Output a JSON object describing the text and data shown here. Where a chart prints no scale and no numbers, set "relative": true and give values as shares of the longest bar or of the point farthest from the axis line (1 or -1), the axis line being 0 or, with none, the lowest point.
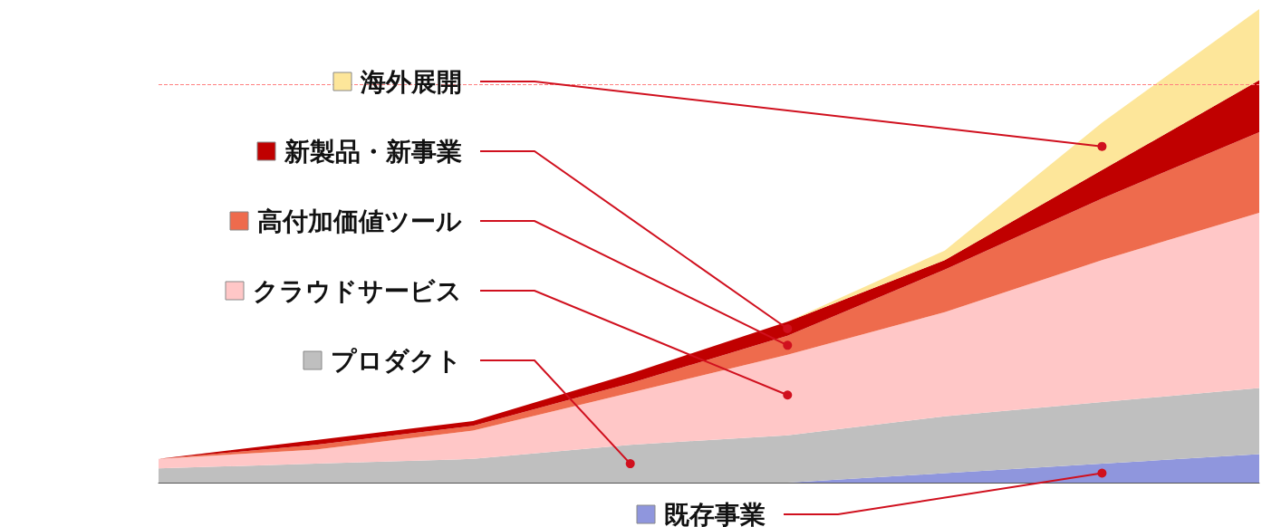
{
  "chart_data": {
    "type": "area",
    "stacked": true,
    "relative": true,
    "legend": "left",
    "marker": "none",
    "categories": [
      null,
      null,
      null,
      null,
      null,
      null,
      null,
      null
    ],
    "series": [
      {
        "name": "既存事業",
        "color": "#8f96dd",
        "values": [
          0,
          0,
          0,
          0,
          0,
          0.02,
          0.04,
          0.06
        ]
      },
      {
        "name": "プロダクト",
        "color": "#bfbfbf",
        "values": [
          0.03,
          0.04,
          0.05,
          0.08,
          0.1,
          0.12,
          0.13,
          0.14
        ]
      },
      {
        "name": "クラウドサービス",
        "color": "#ffc7c7",
        "values": [
          0.02,
          0.03,
          0.06,
          0.11,
          0.17,
          0.22,
          0.3,
          0.37
        ]
      },
      {
        "name": "高付加価値ツール",
        "color": "#ee6b4d",
        "values": [
          0,
          0.01,
          0.01,
          0.02,
          0.04,
          0.09,
          0.13,
          0.17
        ]
      },
      {
        "name": "新製品・新事業",
        "color": "#c00000",
        "values": [
          0,
          0.01,
          0.01,
          0.02,
          0.03,
          0.02,
          0.06,
          0.11
        ]
      },
      {
        "name": "海外展開",
        "color": "#fde69a",
        "values": [
          0,
          0,
          0,
          0,
          0,
          0.02,
          0.1,
          0.15
        ]
      }
    ],
    "ref_lines": [
      {
        "axis": "y",
        "value": 0.84,
        "color": "#ff8080",
        "line_style": "dashed"
      }
    ]
  }
}
